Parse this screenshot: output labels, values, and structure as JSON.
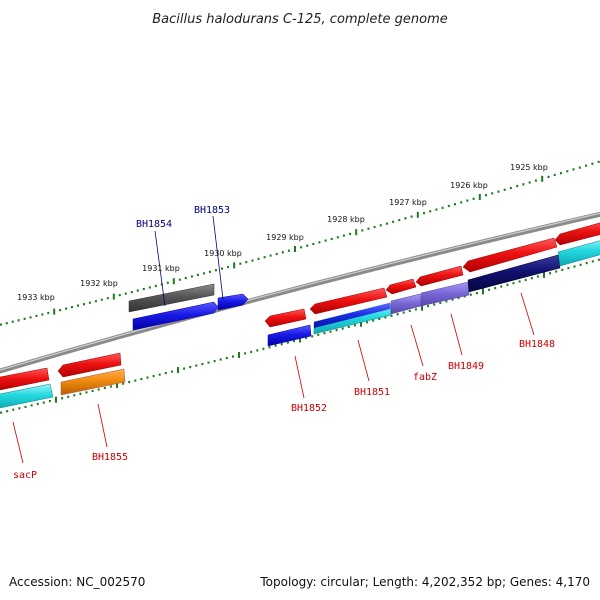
{
  "title": "Bacillus halodurans C-125, complete genome",
  "footer": {
    "accession": "Accession: NC_002570",
    "summary": "Topology: circular; Length: 4,202,352 bp; Genes: 4,170"
  },
  "colors": {
    "backbone": "#8a8a8a",
    "tick": "#1f7a1f",
    "forward_gene": "#ee1111",
    "forward_rna": "#1a1ae6",
    "gray_feature": "#555555",
    "reverse_cyan": "#22d8e0",
    "reverse_blue": "#1a1ae6",
    "reverse_navy": "#101070",
    "reverse_lavender": "#7a6ad8",
    "reverse_orange": "#f08a10",
    "label_blue": "#000080",
    "label_red": "#cc0000"
  },
  "scale_labels": [
    {
      "text": "1925 kbp",
      "kbp": 1925
    },
    {
      "text": "1926 kbp",
      "kbp": 1926
    },
    {
      "text": "1927 kbp",
      "kbp": 1927
    },
    {
      "text": "1928 kbp",
      "kbp": 1928
    },
    {
      "text": "1929 kbp",
      "kbp": 1929
    },
    {
      "text": "1930 kbp",
      "kbp": 1930
    },
    {
      "text": "1931 kbp",
      "kbp": 1931
    },
    {
      "text": "1932 kbp",
      "kbp": 1932
    },
    {
      "text": "1933 kbp",
      "kbp": 1933
    }
  ],
  "gene_labels": [
    {
      "text": "BH1854",
      "color": "blue"
    },
    {
      "text": "BH1853",
      "color": "blue"
    },
    {
      "text": "sacP",
      "color": "red"
    },
    {
      "text": "BH1855",
      "color": "red"
    },
    {
      "text": "BH1852",
      "color": "red"
    },
    {
      "text": "BH1851",
      "color": "red"
    },
    {
      "text": "fabZ",
      "color": "red"
    },
    {
      "text": "BH1849",
      "color": "red"
    },
    {
      "text": "BH1848",
      "color": "red"
    }
  ]
}
